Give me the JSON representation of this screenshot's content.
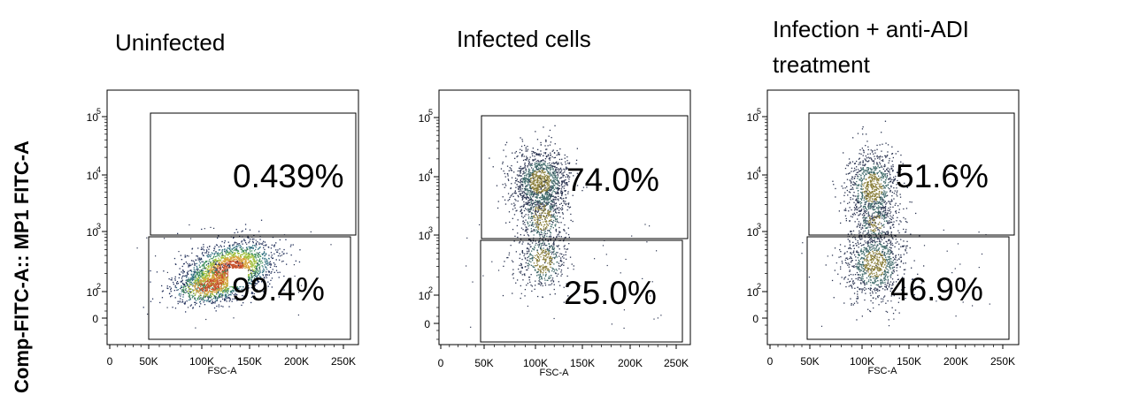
{
  "figure": {
    "ylabel": "Comp-FITC-A:: MP1 FITC-A"
  },
  "chart_data": [
    {
      "type": "scatter",
      "title": "Uninfected",
      "xlabel": "FSC-A",
      "x_ticks": [
        "0",
        "50K",
        "100K",
        "150K",
        "200K",
        "250K"
      ],
      "y_ticks": [
        {
          "base": "10",
          "exp": "5"
        },
        {
          "base": "10",
          "exp": "4"
        },
        {
          "base": "10",
          "exp": "3"
        },
        {
          "base": "10",
          "exp": "2"
        },
        {
          "base": "0",
          "exp": ""
        }
      ],
      "y_scale": "biexponential",
      "gates": [
        {
          "name": "upper",
          "percent": "0.439%"
        },
        {
          "name": "lower",
          "percent": "99.4%"
        }
      ],
      "population": {
        "x_center": 125000,
        "y_center": 200,
        "color_mode": "density"
      }
    },
    {
      "type": "scatter",
      "title": "Infected cells",
      "xlabel": "FSC-A",
      "x_ticks": [
        "0",
        "50K",
        "100K",
        "150K",
        "200K",
        "250K"
      ],
      "y_ticks": [
        {
          "base": "10",
          "exp": "5"
        },
        {
          "base": "10",
          "exp": "4"
        },
        {
          "base": "10",
          "exp": "3"
        },
        {
          "base": "10",
          "exp": "2"
        },
        {
          "base": "0",
          "exp": ""
        }
      ],
      "y_scale": "biexponential",
      "gates": [
        {
          "name": "upper",
          "percent": "74.0%"
        },
        {
          "name": "lower",
          "percent": "25.0%"
        }
      ],
      "population": {
        "x_center": 110000,
        "y_center": 6000,
        "color_mode": "density"
      }
    },
    {
      "type": "scatter",
      "title": "Infection + anti-ADI",
      "title_line2": "treatment",
      "xlabel": "FSC-A",
      "x_ticks": [
        "0",
        "50K",
        "100K",
        "150K",
        "200K",
        "250K"
      ],
      "y_ticks": [
        {
          "base": "10",
          "exp": "5"
        },
        {
          "base": "10",
          "exp": "4"
        },
        {
          "base": "10",
          "exp": "3"
        },
        {
          "base": "10",
          "exp": "2"
        },
        {
          "base": "0",
          "exp": ""
        }
      ],
      "y_scale": "biexponential",
      "gates": [
        {
          "name": "upper",
          "percent": "51.6%"
        },
        {
          "name": "lower",
          "percent": "46.9%"
        }
      ],
      "population": {
        "x_center": 110000,
        "y_center": 1000,
        "color_mode": "density"
      }
    }
  ]
}
